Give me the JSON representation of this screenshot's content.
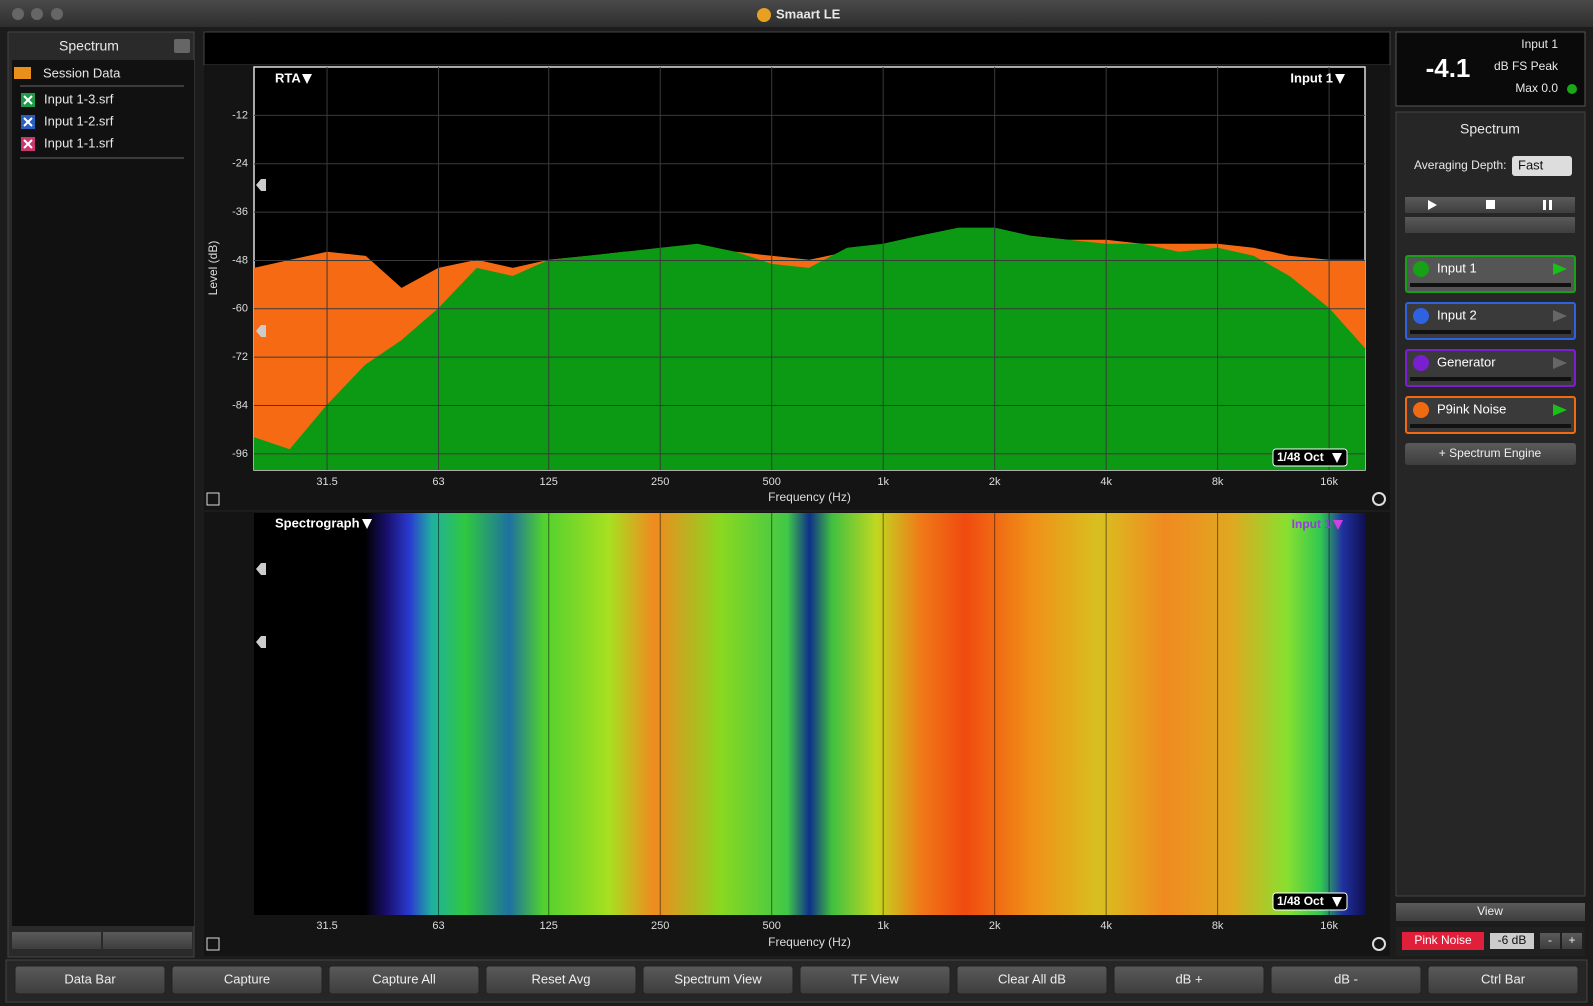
{
  "window": {
    "title": "Smaart LE"
  },
  "left_panel": {
    "title": "Spectrum",
    "session": "Session Data",
    "files": [
      {
        "label": "Input 1-3.srf",
        "color": "#1f9a4a"
      },
      {
        "label": "Input 1-2.srf",
        "color": "#2a5fbf"
      },
      {
        "label": "Input 1-1.srf",
        "color": "#c8386e"
      }
    ]
  },
  "rta": {
    "title": "RTA",
    "source": "Input 1",
    "resolution": "1/48 Oct",
    "ylabel": "Level (dB)",
    "xlabel": "Frequency (Hz)",
    "xlim": [
      20,
      20000
    ],
    "ylim": [
      -100,
      0
    ],
    "log_x": true,
    "grid": true,
    "yticks": [
      -12,
      -24,
      -36,
      -48,
      -60,
      -72,
      -84,
      -96
    ],
    "xticks": [
      31.5,
      63,
      125,
      250,
      500,
      {
        "value": 1000,
        "label": "1k"
      },
      {
        "value": 2000,
        "label": "2k"
      },
      {
        "value": 4000,
        "label": "4k"
      },
      {
        "value": 8000,
        "label": "8k"
      },
      {
        "value": 16000,
        "label": "16k"
      }
    ],
    "traces": [
      {
        "color": "#f56a12",
        "x": [
          20,
          25,
          31.5,
          40,
          50,
          63,
          80,
          100,
          125,
          160,
          200,
          250,
          315,
          400,
          500,
          630,
          800,
          1000,
          1250,
          1600,
          2000,
          2500,
          3150,
          4000,
          5000,
          6300,
          8000,
          10000,
          12500,
          16000,
          20000
        ],
        "values": [
          -50,
          -48,
          -46,
          -47,
          -55,
          -50,
          -48,
          -50,
          -48,
          -47,
          -46,
          -46,
          -46,
          -46,
          -47,
          -48,
          -46,
          -44,
          -43,
          -42,
          -41,
          -42,
          -43,
          -43,
          -44,
          -44,
          -44,
          -45,
          -47,
          -48,
          -48
        ]
      },
      {
        "color": "#0c9a14",
        "x": [
          20,
          25,
          31.5,
          40,
          50,
          63,
          80,
          100,
          125,
          160,
          200,
          250,
          315,
          400,
          500,
          630,
          800,
          1000,
          1250,
          1600,
          2000,
          2500,
          3150,
          4000,
          5000,
          6300,
          8000,
          10000,
          12500,
          16000,
          20000
        ],
        "values": [
          -92,
          -95,
          -84,
          -74,
          -68,
          -60,
          -50,
          -52,
          -48,
          -47,
          -46,
          -45,
          -44,
          -46,
          -49,
          -50,
          -45,
          -44,
          -42,
          -40,
          -40,
          -42,
          -43,
          -44,
          -44,
          -46,
          -45,
          -47,
          -52,
          -60,
          -70
        ]
      }
    ]
  },
  "spectrograph": {
    "title": "Spectrograph",
    "source": "Input 1",
    "resolution": "1/48 Oct",
    "xlabel": "Frequency (Hz)",
    "xlim": [
      20,
      20000
    ],
    "xticks": [
      31.5,
      63,
      125,
      250,
      500,
      {
        "value": 1000,
        "label": "1k"
      },
      {
        "value": 2000,
        "label": "2k"
      },
      {
        "value": 4000,
        "label": "4k"
      },
      {
        "value": 8000,
        "label": "8k"
      },
      {
        "value": 16000,
        "label": "16k"
      }
    ]
  },
  "meter": {
    "value": "-4.1",
    "source": "Input 1",
    "mode": "dB FS Peak",
    "max": "Max 0.0"
  },
  "right_panel": {
    "title": "Spectrum",
    "averaging_label": "Averaging Depth:",
    "averaging_value": "Fast",
    "engines": [
      {
        "label": "Input 1",
        "color": "#18a018"
      },
      {
        "label": "Input 2",
        "color": "#2f62e0"
      },
      {
        "label": "Generator",
        "color": "#7a1fd0"
      },
      {
        "label": "P9ink Noise",
        "color": "#f06a12"
      }
    ],
    "add_engine": "+ Spectrum Engine",
    "view": "View",
    "generator": "Pink Noise",
    "gen_level": "-6 dB",
    "minus": "-",
    "plus": "+"
  },
  "toolbar": [
    "Data Bar",
    "Capture",
    "Capture All",
    "Reset Avg",
    "Spectrum View",
    "TF View",
    "Clear All dB",
    "dB +",
    "dB -",
    "Ctrl Bar"
  ]
}
